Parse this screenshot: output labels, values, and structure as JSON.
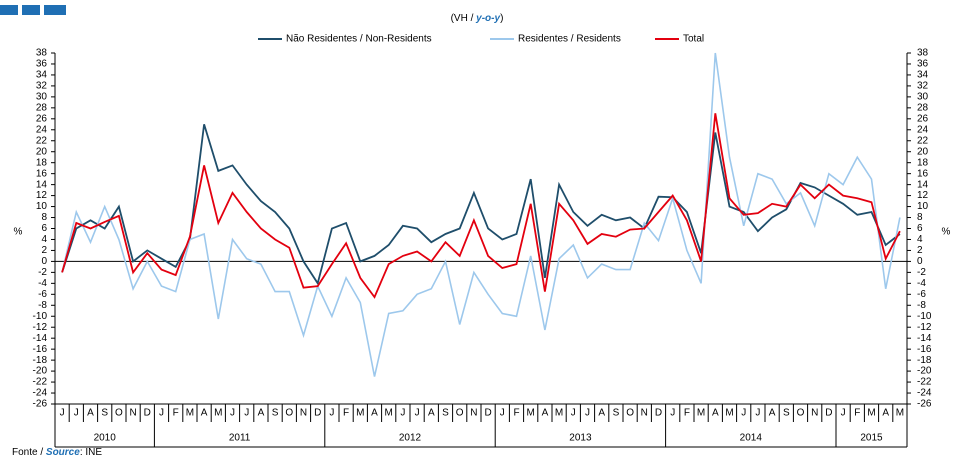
{
  "chart_data": {
    "type": "line",
    "subtitle_parts": [
      "(VH / ",
      "y-o-y",
      ")"
    ],
    "y_label": "%",
    "source_parts": [
      "Fonte / ",
      "Source",
      ": INE"
    ],
    "categories": [
      "J",
      "J",
      "A",
      "S",
      "O",
      "N",
      "D",
      "J",
      "F",
      "M",
      "A",
      "M",
      "J",
      "J",
      "A",
      "S",
      "O",
      "N",
      "D",
      "J",
      "F",
      "M",
      "A",
      "M",
      "J",
      "J",
      "A",
      "S",
      "O",
      "N",
      "D",
      "J",
      "F",
      "M",
      "A",
      "M",
      "J",
      "J",
      "A",
      "S",
      "O",
      "N",
      "D",
      "J",
      "F",
      "M",
      "A",
      "M",
      "J",
      "J",
      "A",
      "S",
      "O",
      "N",
      "D",
      "J",
      "F",
      "M",
      "A",
      "M"
    ],
    "years": [
      "2010",
      "2011",
      "2012",
      "2013",
      "2014",
      "2015"
    ],
    "series": [
      {
        "name": "Não Residentes / Non-Residents",
        "color": "#1f4e6b",
        "values": [
          -2,
          6,
          7.5,
          6,
          10,
          0,
          2,
          0.5,
          -1,
          4,
          25,
          16.5,
          17.5,
          14,
          11,
          9,
          6,
          0,
          -4,
          6,
          7,
          0,
          1,
          3,
          6.5,
          6,
          3.5,
          5,
          6,
          12.5,
          6,
          4,
          5,
          15,
          -3,
          14,
          9,
          6.5,
          8.5,
          7.5,
          8,
          6,
          11.8,
          11.7,
          9,
          1.5,
          23.5,
          10,
          9,
          5.5,
          8,
          9.5,
          14.3,
          13.5,
          12,
          10.5,
          8.5,
          9,
          3,
          5
        ]
      },
      {
        "name": "Residentes / Residents",
        "color": "#9dc8ec",
        "values": [
          -2,
          9,
          3.5,
          10,
          4,
          -5,
          0,
          -4.5,
          -5.5,
          4,
          5,
          -10.5,
          4,
          0.5,
          -0.5,
          -5.5,
          -5.5,
          -13.5,
          -4.5,
          -10,
          -3,
          -7.5,
          -21,
          -9.5,
          -9,
          -6,
          -5,
          0,
          -11.5,
          -2,
          -6,
          -9.5,
          -10,
          1,
          -12.5,
          0.5,
          3,
          -3,
          -0.5,
          -1.5,
          -1.5,
          7,
          3.8,
          11.5,
          2,
          -4,
          38,
          19,
          6.5,
          16,
          15,
          10.5,
          12.5,
          6.5,
          16,
          14,
          19,
          15,
          -5,
          8
        ]
      },
      {
        "name": "Total",
        "color": "#e3000f",
        "values": [
          -2,
          7,
          6,
          7.2,
          8.3,
          -2,
          1.5,
          -1.5,
          -2.5,
          4.5,
          17.5,
          7,
          12.5,
          9,
          6,
          4,
          2.5,
          -4.8,
          -4.5,
          -0.5,
          3.3,
          -3,
          -6.5,
          -0.5,
          1,
          1.8,
          0,
          3.5,
          1,
          7.5,
          1,
          -1.2,
          -0.5,
          10.5,
          -5.5,
          10.5,
          7.5,
          3.2,
          5,
          4.5,
          5.8,
          6,
          9,
          12,
          7.5,
          0,
          27,
          11.5,
          8.5,
          8.8,
          10.5,
          10,
          14,
          11.5,
          14,
          12,
          11.5,
          10.8,
          0.5,
          5.5
        ]
      }
    ],
    "ylim": [
      -26,
      38
    ],
    "yticks": [
      -26,
      -24,
      -22,
      -20,
      -18,
      -16,
      -14,
      -12,
      -10,
      -8,
      -6,
      -4,
      -2,
      0,
      2,
      4,
      6,
      8,
      10,
      12,
      14,
      16,
      18,
      20,
      22,
      24,
      26,
      28,
      30,
      32,
      34,
      36,
      38
    ]
  }
}
